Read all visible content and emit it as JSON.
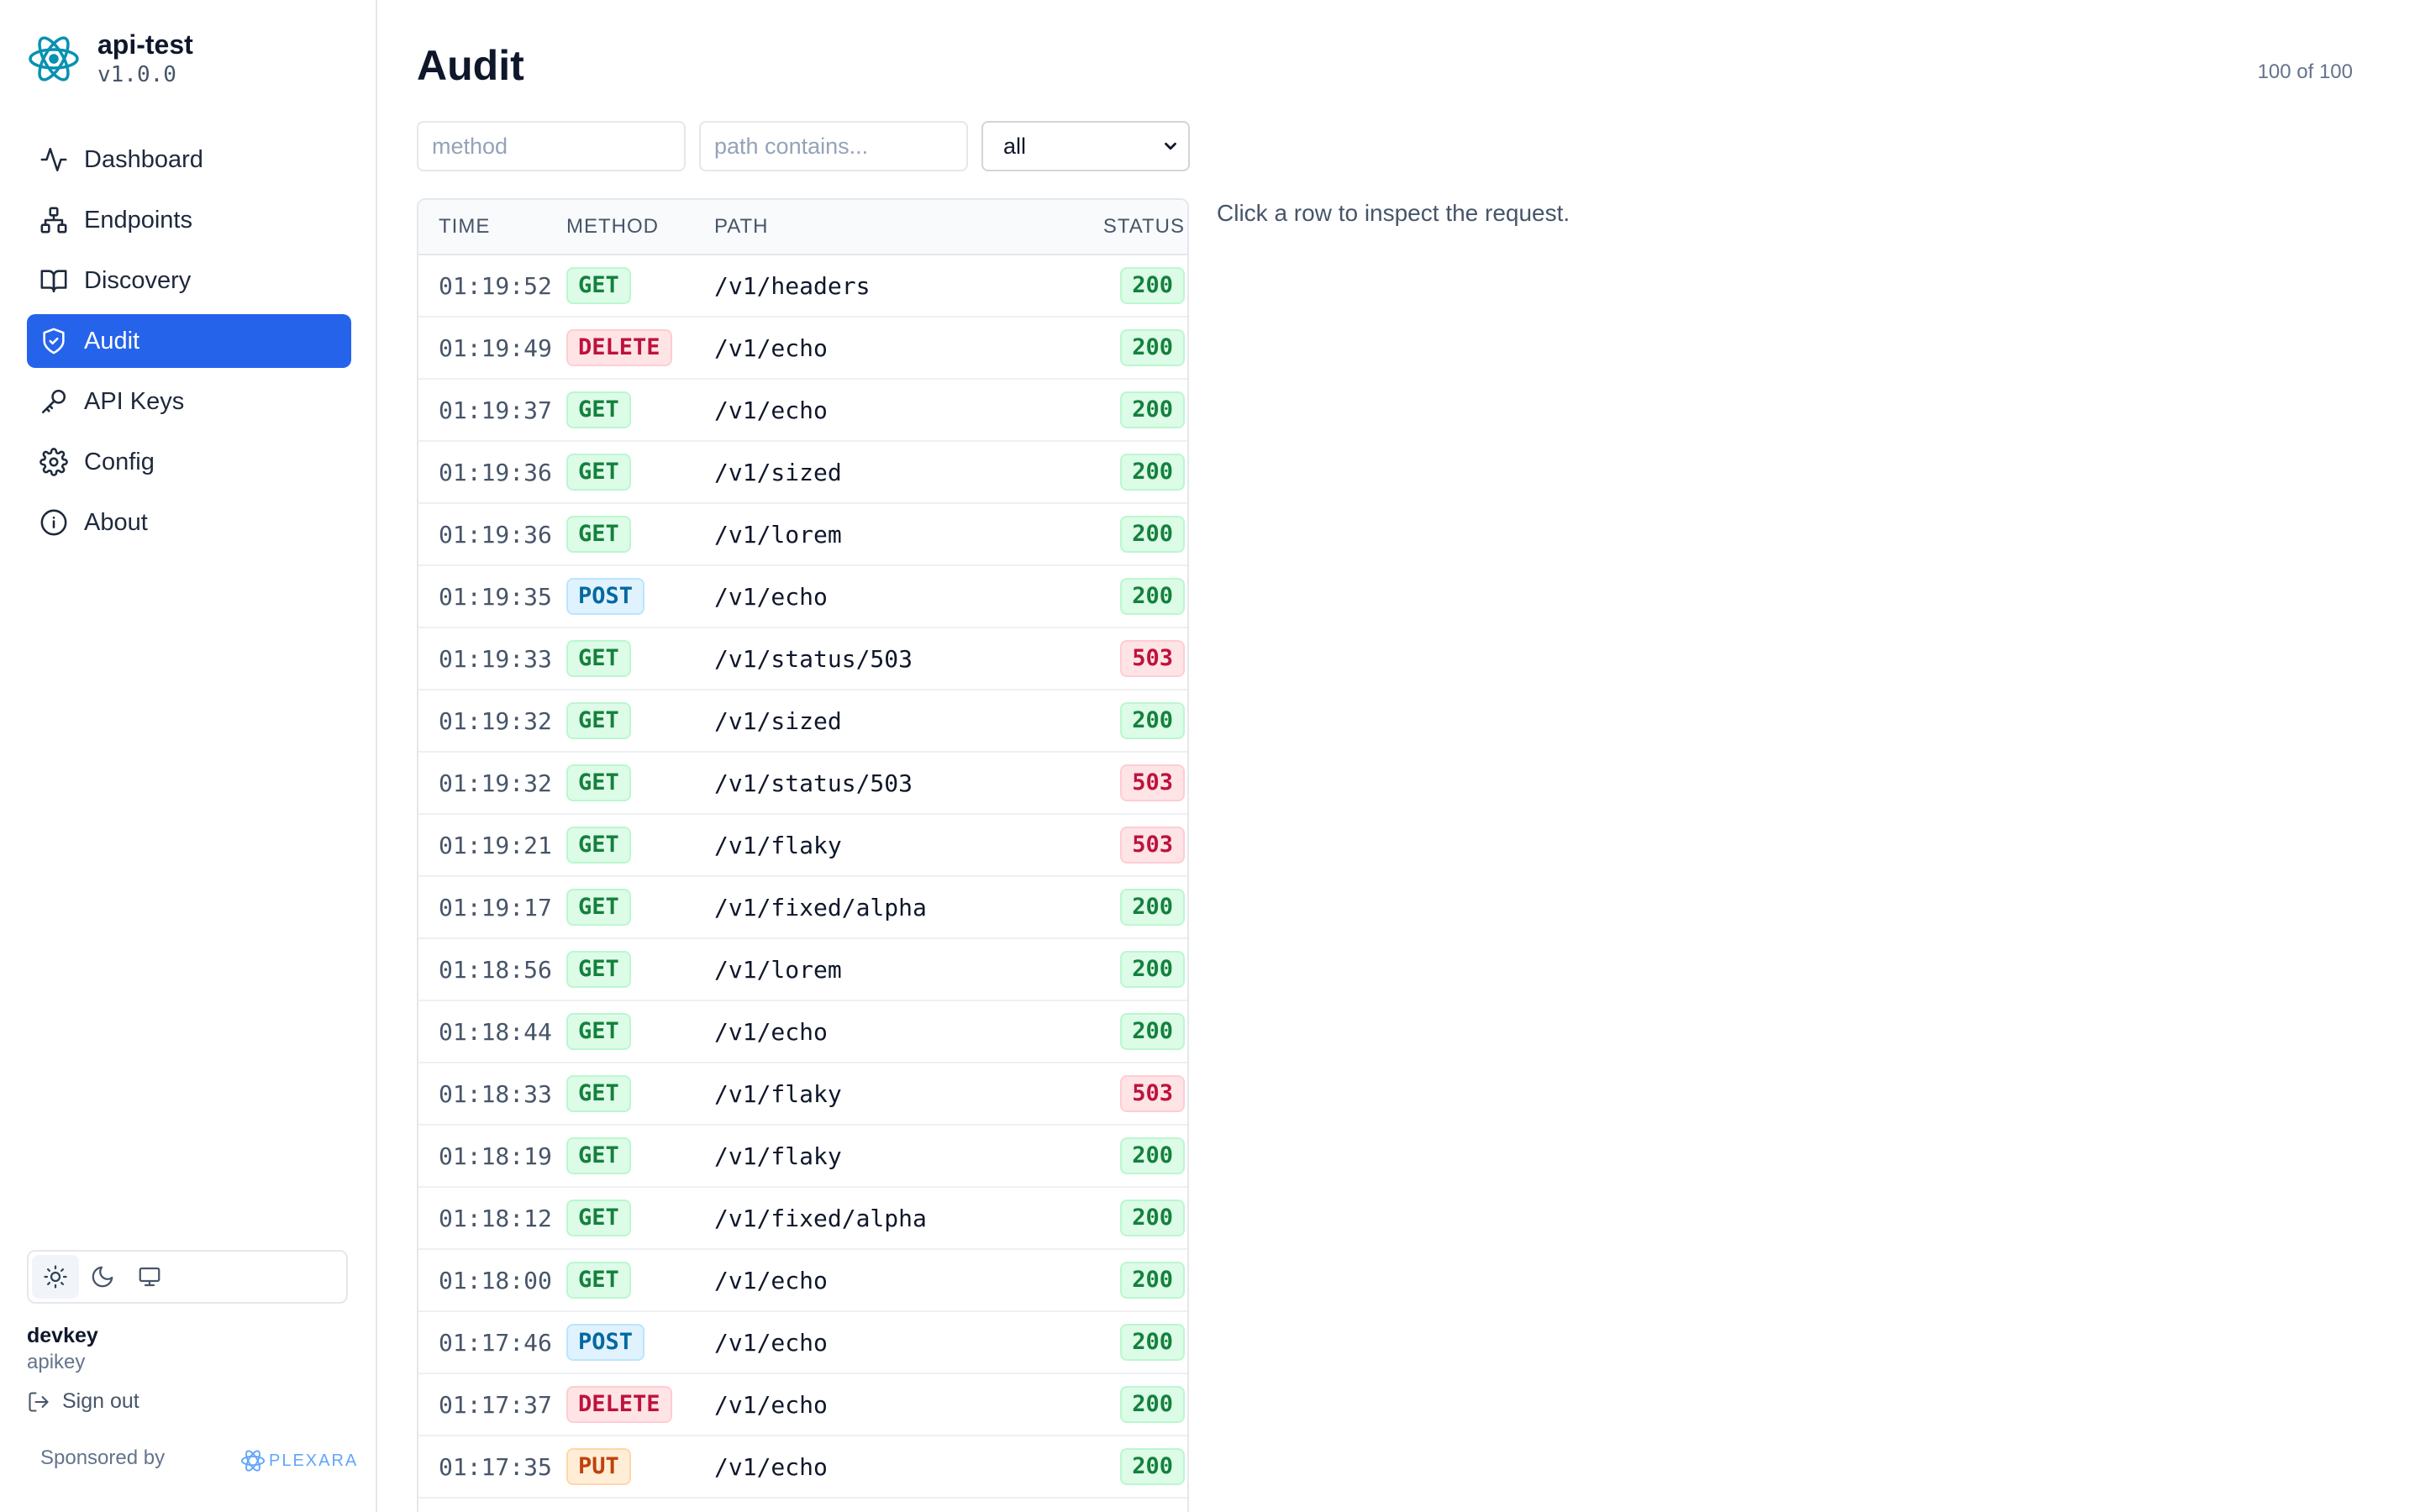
{
  "app": {
    "name": "api-test",
    "version": "v1.0.0"
  },
  "nav": [
    {
      "label": "Dashboard",
      "icon": "activity-icon",
      "active": false
    },
    {
      "label": "Endpoints",
      "icon": "sitemap-icon",
      "active": false
    },
    {
      "label": "Discovery",
      "icon": "book-icon",
      "active": false
    },
    {
      "label": "Audit",
      "icon": "shield-check-icon",
      "active": true
    },
    {
      "label": "API Keys",
      "icon": "key-icon",
      "active": false
    },
    {
      "label": "Config",
      "icon": "gear-icon",
      "active": false
    },
    {
      "label": "About",
      "icon": "info-icon",
      "active": false
    }
  ],
  "theme": {
    "selected": "light",
    "options": [
      "light",
      "dark",
      "system"
    ]
  },
  "user": {
    "name": "devkey",
    "role": "apikey",
    "signout_label": "Sign out"
  },
  "sponsor": {
    "label": "Sponsored by",
    "brand": "PLEXARA"
  },
  "page": {
    "title": "Audit",
    "count": "100 of 100"
  },
  "filters": {
    "method_placeholder": "method",
    "path_placeholder": "path contains...",
    "status_selected": "all"
  },
  "table": {
    "headers": {
      "time": "TIME",
      "method": "METHOD",
      "path": "PATH",
      "status": "STATUS"
    },
    "rows": [
      {
        "time": "01:19:52",
        "method": "GET",
        "path": "/v1/headers",
        "status": "200"
      },
      {
        "time": "01:19:49",
        "method": "DELETE",
        "path": "/v1/echo",
        "status": "200"
      },
      {
        "time": "01:19:37",
        "method": "GET",
        "path": "/v1/echo",
        "status": "200"
      },
      {
        "time": "01:19:36",
        "method": "GET",
        "path": "/v1/sized",
        "status": "200"
      },
      {
        "time": "01:19:36",
        "method": "GET",
        "path": "/v1/lorem",
        "status": "200"
      },
      {
        "time": "01:19:35",
        "method": "POST",
        "path": "/v1/echo",
        "status": "200"
      },
      {
        "time": "01:19:33",
        "method": "GET",
        "path": "/v1/status/503",
        "status": "503"
      },
      {
        "time": "01:19:32",
        "method": "GET",
        "path": "/v1/sized",
        "status": "200"
      },
      {
        "time": "01:19:32",
        "method": "GET",
        "path": "/v1/status/503",
        "status": "503"
      },
      {
        "time": "01:19:21",
        "method": "GET",
        "path": "/v1/flaky",
        "status": "503"
      },
      {
        "time": "01:19:17",
        "method": "GET",
        "path": "/v1/fixed/alpha",
        "status": "200"
      },
      {
        "time": "01:18:56",
        "method": "GET",
        "path": "/v1/lorem",
        "status": "200"
      },
      {
        "time": "01:18:44",
        "method": "GET",
        "path": "/v1/echo",
        "status": "200"
      },
      {
        "time": "01:18:33",
        "method": "GET",
        "path": "/v1/flaky",
        "status": "503"
      },
      {
        "time": "01:18:19",
        "method": "GET",
        "path": "/v1/flaky",
        "status": "200"
      },
      {
        "time": "01:18:12",
        "method": "GET",
        "path": "/v1/fixed/alpha",
        "status": "200"
      },
      {
        "time": "01:18:00",
        "method": "GET",
        "path": "/v1/echo",
        "status": "200"
      },
      {
        "time": "01:17:46",
        "method": "POST",
        "path": "/v1/echo",
        "status": "200"
      },
      {
        "time": "01:17:37",
        "method": "DELETE",
        "path": "/v1/echo",
        "status": "200"
      },
      {
        "time": "01:17:35",
        "method": "PUT",
        "path": "/v1/echo",
        "status": "200"
      }
    ]
  },
  "detail": {
    "hint": "Click a row to inspect the request."
  },
  "colors": {
    "accent": "#2563eb",
    "ok": "#15803d",
    "error": "#be123c"
  }
}
